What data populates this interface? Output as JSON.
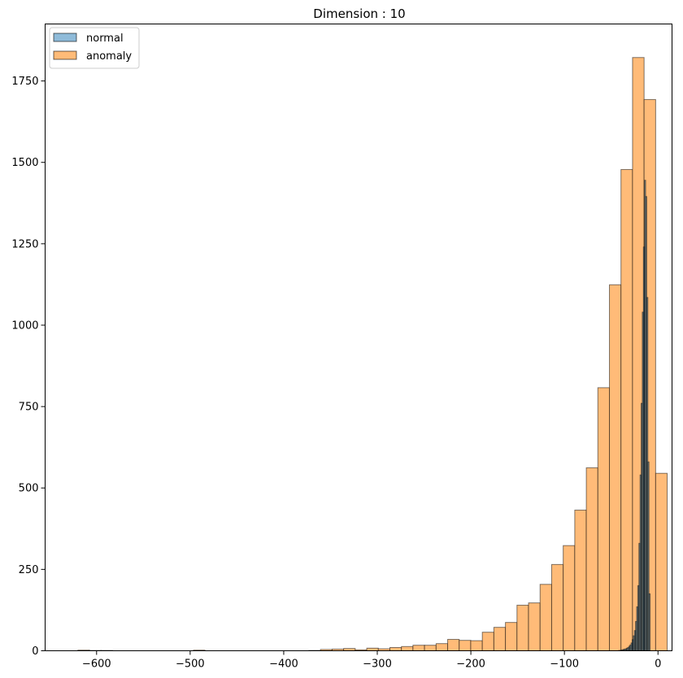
{
  "chart_data": {
    "type": "bar",
    "title": "Dimension : 10",
    "xlabel": "",
    "ylabel": "",
    "xlim": [
      -655,
      15
    ],
    "ylim": [
      0,
      1925
    ],
    "xticks": [
      -600,
      -500,
      -400,
      -300,
      -200,
      -100,
      0
    ],
    "yticks": [
      0,
      250,
      500,
      750,
      1000,
      1250,
      1500,
      1750
    ],
    "legend_position": "top-left",
    "series": [
      {
        "name": "anomaly",
        "color": "#ffbb78",
        "opacity": 0.6,
        "bin_width": 12.35,
        "bins_start": -620,
        "counts": [
          2,
          1,
          1,
          0,
          0,
          0,
          0,
          0,
          0,
          0,
          2,
          0,
          0,
          0,
          0,
          0,
          0,
          0,
          0,
          0,
          1,
          4,
          5,
          7,
          3,
          8,
          6,
          10,
          13,
          17,
          17,
          22,
          35,
          32,
          31,
          57,
          72,
          87,
          140,
          147,
          204,
          265,
          323,
          432,
          562,
          808,
          1124,
          1478,
          1822,
          1693,
          545
        ]
      },
      {
        "name": "normal",
        "color": "#1f77b4",
        "opacity": 0.5,
        "bin_width": 1.2,
        "bins_start": -42,
        "counts": [
          1,
          1,
          2,
          3,
          4,
          5,
          6,
          8,
          10,
          14,
          18,
          24,
          34,
          46,
          62,
          90,
          135,
          200,
          330,
          540,
          760,
          1040,
          1240,
          1445,
          1395,
          1085,
          580,
          175
        ]
      }
    ]
  }
}
